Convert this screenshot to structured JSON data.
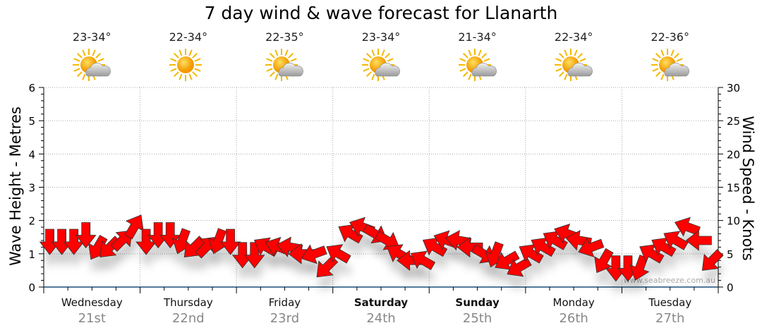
{
  "chart_data": {
    "type": "wind-arrows",
    "title": "7 day wind & wave forecast for Llanarth",
    "ylabel_left": "Wave Height - Metres",
    "ylabel_right": "Wind Speed - Knots",
    "ylim_left": [
      0,
      6
    ],
    "ylim_right": [
      0,
      30
    ],
    "yticks_left": [
      "0",
      "1",
      "2",
      "3",
      "4",
      "5",
      "6"
    ],
    "yticks_right": [
      "0",
      "5",
      "10",
      "15",
      "20",
      "25",
      "30"
    ],
    "grid": true,
    "watermark": "www.seabreeze.com.au",
    "days": [
      {
        "name": "Wednesday",
        "date": "21st",
        "temp": "23-34°",
        "icon": "sun-cloud-icon",
        "bold": false
      },
      {
        "name": "Thursday",
        "date": "22nd",
        "temp": "22-34°",
        "icon": "sun-icon",
        "bold": false
      },
      {
        "name": "Friday",
        "date": "23rd",
        "temp": "22-35°",
        "icon": "sun-cloud-icon",
        "bold": false
      },
      {
        "name": "Saturday",
        "date": "24th",
        "temp": "23-34°",
        "icon": "sun-cloud-icon",
        "bold": true
      },
      {
        "name": "Sunday",
        "date": "25th",
        "temp": "21-34°",
        "icon": "sun-cloud-icon",
        "bold": true
      },
      {
        "name": "Monday",
        "date": "26th",
        "temp": "22-34°",
        "icon": "sun-cloud-icon",
        "bold": false
      },
      {
        "name": "Tuesday",
        "date": "27th",
        "temp": "22-36°",
        "icon": "sun-cloud-icon",
        "bold": false
      }
    ],
    "wind_knots": [
      7,
      7,
      7,
      8,
      6,
      6,
      7,
      9,
      7,
      8,
      8,
      7,
      6,
      6,
      7,
      7,
      5,
      5,
      6,
      6,
      6,
      5,
      5,
      3,
      5,
      8,
      9,
      8,
      7,
      5,
      4,
      4,
      6,
      7,
      7,
      6,
      5,
      5,
      4,
      3,
      5,
      6,
      7,
      8,
      7,
      6,
      4,
      3,
      3,
      3,
      5,
      6,
      7,
      9,
      7,
      4
    ],
    "wind_arrow_deg": [
      180,
      180,
      180,
      180,
      210,
      225,
      45,
      30,
      180,
      180,
      180,
      200,
      225,
      45,
      200,
      180,
      180,
      180,
      300,
      290,
      280,
      270,
      250,
      225,
      300,
      300,
      290,
      120,
      120,
      300,
      270,
      300,
      300,
      290,
      280,
      270,
      120,
      200,
      240,
      240,
      300,
      300,
      300,
      290,
      280,
      250,
      210,
      180,
      180,
      200,
      300,
      300,
      300,
      290,
      270,
      225
    ],
    "arrow_color": "#ff0000"
  }
}
